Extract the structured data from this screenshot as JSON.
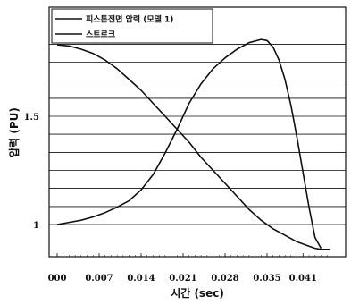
{
  "chart_data": {
    "type": "line",
    "xlabel": "시간 (sec)",
    "ylabel": "압력 (PU)",
    "x_ticks": [
      "000",
      "0.007",
      "0.014",
      "0.021",
      "0.028",
      "0.035",
      "0.041"
    ],
    "y_ticks": [
      "1.5",
      "1"
    ],
    "xlim": [
      0,
      0.0455
    ],
    "ylim": [
      0.88,
      1.97
    ],
    "grid": "horizontal",
    "legend_position": "top-left",
    "series": [
      {
        "name": "피스톤전면 압력 (모델 1)",
        "color": "#111111",
        "x": [
          0,
          0.002,
          0.004,
          0.006,
          0.008,
          0.01,
          0.012,
          0.014,
          0.016,
          0.018,
          0.02,
          0.022,
          0.024,
          0.026,
          0.028,
          0.03,
          0.032,
          0.034,
          0.035,
          0.036,
          0.037,
          0.038,
          0.039,
          0.04,
          0.041,
          0.042,
          0.043,
          0.044
        ],
        "y": [
          1.0,
          1.01,
          1.02,
          1.035,
          1.055,
          1.08,
          1.11,
          1.16,
          1.23,
          1.33,
          1.44,
          1.56,
          1.65,
          1.72,
          1.77,
          1.81,
          1.84,
          1.855,
          1.85,
          1.82,
          1.76,
          1.67,
          1.55,
          1.4,
          1.24,
          1.08,
          0.94,
          0.89
        ]
      },
      {
        "name": "스트로크",
        "color": "#111111",
        "x": [
          0,
          0.002,
          0.004,
          0.006,
          0.008,
          0.01,
          0.012,
          0.014,
          0.016,
          0.018,
          0.02,
          0.022,
          0.024,
          0.026,
          0.028,
          0.03,
          0.032,
          0.034,
          0.036,
          0.038,
          0.04,
          0.042,
          0.043,
          0.044,
          0.0455
        ],
        "y": [
          1.83,
          1.825,
          1.81,
          1.79,
          1.76,
          1.72,
          1.67,
          1.62,
          1.56,
          1.5,
          1.44,
          1.38,
          1.31,
          1.25,
          1.19,
          1.13,
          1.07,
          1.02,
          0.98,
          0.95,
          0.92,
          0.9,
          0.89,
          0.885,
          0.885
        ]
      }
    ]
  }
}
